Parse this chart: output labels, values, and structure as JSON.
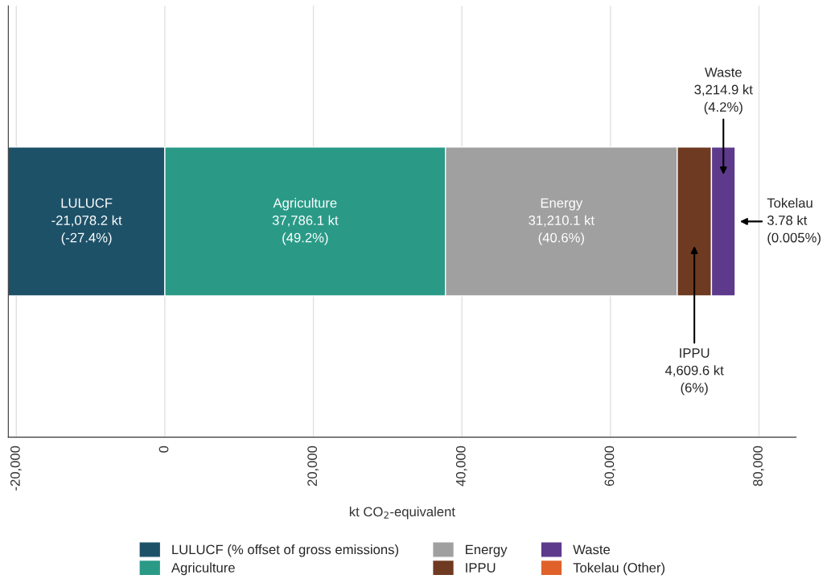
{
  "chart_data": {
    "type": "bar",
    "orientation": "horizontal",
    "stacked": true,
    "categories": [
      null
    ],
    "xlabel": "kt CO$_{2}$-equivalent",
    "xlim": [
      -21078.2,
      85000
    ],
    "xticks": [
      {
        "value": -20000,
        "label": "-20,000"
      },
      0,
      {
        "value": 20000,
        "label": "20,000"
      },
      {
        "value": 40000,
        "label": "40,000"
      },
      {
        "value": 60000,
        "label": "60,000"
      },
      {
        "value": 80000,
        "label": "80,000"
      }
    ],
    "series": [
      {
        "name": "LULUCF (% offset of gross emissions)",
        "color": "#1d5168",
        "values": [
          -21078.2
        ],
        "value_labels": [
          "LULUCF\n-21,078.2 kt\n(-27.4%)"
        ]
      },
      {
        "name": "Agriculture",
        "color": "#2a9a87",
        "values": [
          37786.1
        ],
        "value_labels": [
          "Agriculture\n37,786.1 kt\n(49.2%)"
        ]
      },
      {
        "name": "Energy",
        "color": "#a0a0a0",
        "values": [
          31210.1
        ],
        "value_labels": [
          "Energy\n31,210.1 kt\n(40.6%)"
        ]
      },
      {
        "name": "IPPU",
        "color": "#6f3a22",
        "values": [
          4609.6
        ],
        "value_labels": [
          "IPPU\n4,609.6 kt\n(6%)"
        ]
      },
      {
        "name": "Waste",
        "color": "#5d3a8c",
        "values": [
          3214.9
        ],
        "value_labels": [
          "Waste\n3,214.9 kt\n(4.2%)"
        ]
      },
      {
        "name": "Tokelau (Other)",
        "color": "#e0622a",
        "values": [
          3.78
        ],
        "value_labels": [
          "Tokelau\n3.78 kt\n(0.005%)"
        ]
      }
    ],
    "grid": "x",
    "legend": "bottom",
    "tick_labels": "x"
  }
}
